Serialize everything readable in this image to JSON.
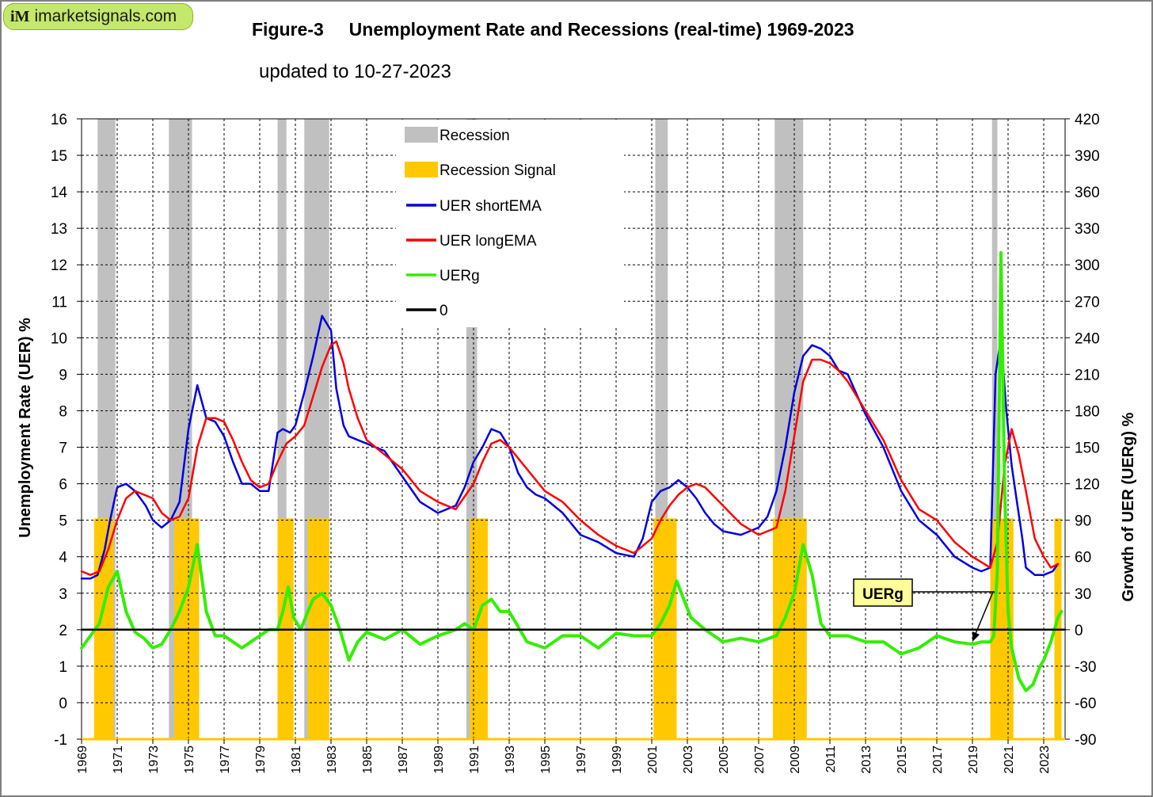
{
  "badge": {
    "icon_text": "iM",
    "site": "imarketsignals.com"
  },
  "title": "Figure-3     Unemployment Rate and Recessions (real-time) 1969-2023",
  "subtitle": "updated to 10-27-2023",
  "chart_data": {
    "type": "line",
    "title": "Figure-3 Unemployment Rate and Recessions (real-time) 1969-2023",
    "ylabel": "Unemployment Rate (UER) %",
    "y2label": "Growth of UER (UERg)  %",
    "xlim": [
      1969,
      2024.2
    ],
    "ylim": [
      -1,
      16
    ],
    "y2lim": [
      -90,
      420
    ],
    "yticks": [
      -1,
      0,
      1,
      2,
      3,
      4,
      5,
      6,
      7,
      8,
      9,
      10,
      11,
      12,
      13,
      14,
      15,
      16
    ],
    "y2ticks": [
      -90,
      -60,
      -30,
      0,
      30,
      60,
      90,
      120,
      150,
      180,
      210,
      240,
      270,
      300,
      330,
      360,
      390,
      420
    ],
    "xticks": [
      1969,
      1971,
      1973,
      1975,
      1977,
      1979,
      1981,
      1983,
      1985,
      1987,
      1989,
      1991,
      1993,
      1995,
      1997,
      1999,
      2001,
      2003,
      2005,
      2007,
      2009,
      2011,
      2013,
      2015,
      2017,
      2019,
      2021,
      2023
    ],
    "grid": true,
    "legend_position": "top-center",
    "legend": [
      {
        "label": "Recession",
        "kind": "box",
        "color": "#c0c0c0"
      },
      {
        "label": "Recession Signal",
        "kind": "box",
        "color": "#ffc800"
      },
      {
        "label": "UER shortEMA",
        "kind": "line",
        "color": "#0000e0"
      },
      {
        "label": "UER longEMA",
        "kind": "line",
        "color": "#ff0000"
      },
      {
        "label": "UERg",
        "kind": "line",
        "color": "#33ee00"
      },
      {
        "label": "0",
        "kind": "line",
        "color": "#000000"
      }
    ],
    "recessions": [
      [
        1969.9,
        1970.9
      ],
      [
        1973.9,
        1975.2
      ],
      [
        1980.0,
        1980.5
      ],
      [
        1981.5,
        1982.9
      ],
      [
        1990.6,
        1991.2
      ],
      [
        2001.2,
        2001.9
      ],
      [
        2007.9,
        2009.5
      ],
      [
        2020.1,
        2020.4
      ]
    ],
    "recession_signals": [
      [
        1969.7,
        1970.8
      ],
      [
        1974.2,
        1975.6
      ],
      [
        1980.0,
        1980.9
      ],
      [
        1981.7,
        1982.9
      ],
      [
        1990.8,
        1991.8
      ],
      [
        2001.1,
        2002.4
      ],
      [
        2007.8,
        2009.7
      ],
      [
        2020.0,
        2021.3
      ],
      [
        2023.6,
        2024.0
      ]
    ],
    "series": [
      {
        "name": "UER shortEMA",
        "color": "#0000e0",
        "x": [
          1969.0,
          1969.5,
          1969.9,
          1970.3,
          1970.6,
          1971.0,
          1971.5,
          1972.0,
          1972.6,
          1973.0,
          1973.5,
          1974.0,
          1974.5,
          1975.0,
          1975.5,
          1976.0,
          1976.5,
          1977.0,
          1977.5,
          1978.0,
          1978.5,
          1979.0,
          1979.5,
          1980.0,
          1980.3,
          1980.7,
          1981.0,
          1981.5,
          1982.0,
          1982.5,
          1983.0,
          1983.3,
          1983.7,
          1984.0,
          1984.5,
          1985.0,
          1986.0,
          1987.0,
          1988.0,
          1989.0,
          1990.0,
          1990.5,
          1991.0,
          1991.5,
          1992.0,
          1992.5,
          1993.0,
          1993.5,
          1994.0,
          1994.5,
          1995.0,
          1996.0,
          1997.0,
          1998.0,
          1999.0,
          2000.0,
          2000.5,
          2001.0,
          2001.5,
          2002.0,
          2002.5,
          2003.0,
          2003.5,
          2004.0,
          2004.5,
          2005.0,
          2006.0,
          2007.0,
          2007.5,
          2008.0,
          2008.5,
          2009.0,
          2009.5,
          2010.0,
          2010.5,
          2011.0,
          2011.5,
          2012.0,
          2013.0,
          2014.0,
          2015.0,
          2016.0,
          2017.0,
          2018.0,
          2019.0,
          2019.5,
          2020.0,
          2020.3,
          2020.6,
          2020.9,
          2021.2,
          2021.5,
          2021.8,
          2022.0,
          2022.5,
          2023.0,
          2023.5,
          2023.8
        ],
        "y": [
          3.4,
          3.4,
          3.5,
          4.2,
          5.0,
          5.9,
          6.0,
          5.8,
          5.4,
          5.0,
          4.8,
          5.0,
          5.5,
          7.5,
          8.7,
          7.8,
          7.7,
          7.3,
          6.6,
          6.0,
          6.0,
          5.8,
          5.8,
          7.4,
          7.5,
          7.4,
          7.6,
          8.5,
          9.5,
          10.6,
          10.2,
          8.6,
          7.6,
          7.3,
          7.2,
          7.1,
          6.9,
          6.2,
          5.5,
          5.2,
          5.4,
          5.9,
          6.6,
          7.0,
          7.5,
          7.4,
          7.0,
          6.3,
          5.9,
          5.7,
          5.6,
          5.2,
          4.6,
          4.4,
          4.1,
          4.0,
          4.5,
          5.5,
          5.8,
          5.9,
          6.1,
          5.9,
          5.6,
          5.2,
          4.9,
          4.7,
          4.6,
          4.8,
          5.1,
          5.8,
          7.0,
          8.5,
          9.5,
          9.8,
          9.7,
          9.5,
          9.1,
          9.0,
          7.9,
          7.0,
          5.8,
          5.0,
          4.6,
          4.0,
          3.7,
          3.6,
          3.7,
          9.0,
          10.0,
          8.0,
          6.5,
          5.5,
          4.5,
          3.7,
          3.5,
          3.5,
          3.6,
          3.8
        ]
      },
      {
        "name": "UER longEMA",
        "color": "#ff0000",
        "x": [
          1969.0,
          1969.5,
          1970.0,
          1970.5,
          1971.0,
          1971.5,
          1972.0,
          1972.5,
          1973.0,
          1973.5,
          1974.0,
          1974.5,
          1975.0,
          1975.5,
          1976.0,
          1976.5,
          1977.0,
          1977.5,
          1978.0,
          1978.5,
          1979.0,
          1979.5,
          1980.0,
          1980.5,
          1981.0,
          1981.5,
          1982.0,
          1982.5,
          1983.0,
          1983.3,
          1983.7,
          1984.0,
          1984.5,
          1985.0,
          1986.0,
          1987.0,
          1988.0,
          1989.0,
          1990.0,
          1991.0,
          1991.5,
          1992.0,
          1992.5,
          1993.0,
          1994.0,
          1995.0,
          1996.0,
          1997.0,
          1998.0,
          1999.0,
          2000.0,
          2001.0,
          2001.5,
          2002.0,
          2002.5,
          2003.0,
          2003.5,
          2004.0,
          2005.0,
          2006.0,
          2007.0,
          2008.0,
          2008.5,
          2009.0,
          2009.5,
          2010.0,
          2010.5,
          2011.0,
          2011.5,
          2012.0,
          2013.0,
          2014.0,
          2015.0,
          2016.0,
          2017.0,
          2018.0,
          2019.0,
          2020.0,
          2020.4,
          2020.8,
          2021.2,
          2021.6,
          2022.0,
          2022.5,
          2023.0,
          2023.4,
          2023.8
        ],
        "y": [
          3.6,
          3.5,
          3.6,
          4.2,
          5.0,
          5.6,
          5.8,
          5.7,
          5.6,
          5.2,
          5.0,
          5.1,
          5.6,
          7.0,
          7.8,
          7.8,
          7.7,
          7.2,
          6.6,
          6.1,
          5.9,
          6.0,
          6.6,
          7.1,
          7.3,
          7.6,
          8.4,
          9.2,
          9.8,
          9.9,
          9.3,
          8.6,
          7.8,
          7.2,
          6.8,
          6.4,
          5.8,
          5.5,
          5.3,
          6.0,
          6.6,
          7.1,
          7.2,
          7.0,
          6.4,
          5.8,
          5.5,
          5.0,
          4.6,
          4.3,
          4.1,
          4.5,
          5.0,
          5.4,
          5.7,
          5.9,
          6.0,
          5.9,
          5.4,
          4.9,
          4.6,
          4.8,
          5.8,
          7.3,
          8.8,
          9.4,
          9.4,
          9.3,
          9.1,
          8.8,
          8.0,
          7.2,
          6.1,
          5.3,
          5.0,
          4.4,
          4.0,
          3.7,
          4.4,
          6.5,
          7.5,
          6.8,
          5.8,
          4.5,
          4.0,
          3.7,
          3.8
        ]
      },
      {
        "name": "UERg",
        "color": "#33ee00",
        "x": [
          1969.0,
          1969.5,
          1970.0,
          1970.5,
          1971.0,
          1971.5,
          1972.0,
          1972.5,
          1973.0,
          1973.5,
          1974.0,
          1974.5,
          1975.0,
          1975.5,
          1976.0,
          1976.5,
          1977.0,
          1977.5,
          1978.0,
          1978.5,
          1979.0,
          1979.5,
          1980.0,
          1980.3,
          1980.6,
          1980.9,
          1981.3,
          1981.7,
          1982.0,
          1982.5,
          1983.0,
          1983.5,
          1984.0,
          1984.5,
          1985.0,
          1986.0,
          1987.0,
          1988.0,
          1989.0,
          1990.0,
          1990.5,
          1991.0,
          1991.5,
          1992.0,
          1992.5,
          1993.0,
          1994.0,
          1995.0,
          1996.0,
          1997.0,
          1998.0,
          1999.0,
          2000.0,
          2001.0,
          2001.5,
          2002.0,
          2002.4,
          2002.8,
          2003.2,
          2003.6,
          2004.0,
          2004.5,
          2005.0,
          2006.0,
          2007.0,
          2008.0,
          2008.5,
          2009.0,
          2009.5,
          2010.0,
          2010.5,
          2011.0,
          2012.0,
          2013.0,
          2014.0,
          2015.0,
          2016.0,
          2017.0,
          2018.0,
          2019.0,
          2019.5,
          2020.0,
          2020.2,
          2020.4,
          2020.6,
          2020.8,
          2021.0,
          2021.2,
          2021.6,
          2022.0,
          2022.4,
          2022.8,
          2023.0,
          2023.4,
          2023.8,
          2024.0
        ],
        "y": [
          -15,
          -5,
          5,
          35,
          48,
          15,
          -2,
          -7,
          -15,
          -12,
          0,
          15,
          35,
          70,
          15,
          -5,
          -5,
          -10,
          -15,
          -10,
          -5,
          0,
          0,
          15,
          35,
          10,
          0,
          15,
          25,
          30,
          20,
          0,
          -25,
          -10,
          -2,
          -8,
          0,
          -12,
          -5,
          0,
          5,
          0,
          20,
          25,
          15,
          15,
          -10,
          -15,
          -5,
          -5,
          -15,
          -3,
          -5,
          -5,
          5,
          20,
          40,
          25,
          10,
          5,
          0,
          -5,
          -10,
          -7,
          -10,
          -5,
          10,
          30,
          70,
          45,
          5,
          -5,
          -5,
          -10,
          -10,
          -20,
          -15,
          -5,
          -10,
          -12,
          -10,
          -10,
          -5,
          50,
          310,
          120,
          15,
          -15,
          -40,
          -50,
          -45,
          -30,
          -25,
          -10,
          10,
          15
        ]
      },
      {
        "name": "0",
        "color": "#000000",
        "x": [
          1969.0,
          2024.2
        ],
        "y": [
          0,
          0
        ]
      }
    ],
    "annotations": [
      {
        "label": "UERg"
      }
    ]
  }
}
